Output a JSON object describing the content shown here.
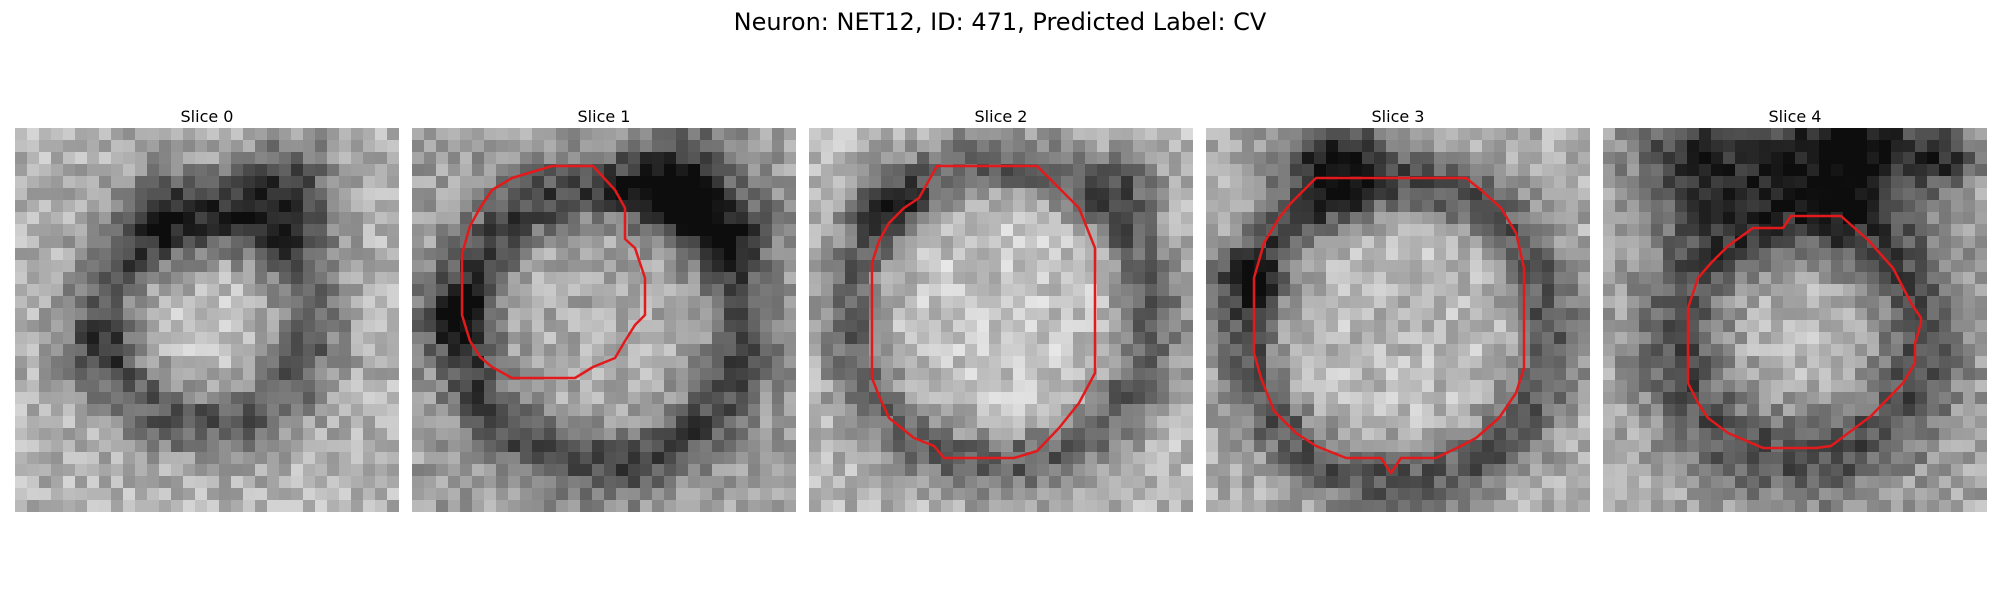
{
  "figure": {
    "title": "Neuron: NET12, ID: 471, Predicted Label: CV"
  },
  "contour_color": "#e31a1c",
  "panels": [
    {
      "title": "Slice 0",
      "has_contour": false
    },
    {
      "title": "Slice 1",
      "has_contour": true
    },
    {
      "title": "Slice 2",
      "has_contour": true
    },
    {
      "title": "Slice 3",
      "has_contour": true
    },
    {
      "title": "Slice 4",
      "has_contour": true
    }
  ]
}
